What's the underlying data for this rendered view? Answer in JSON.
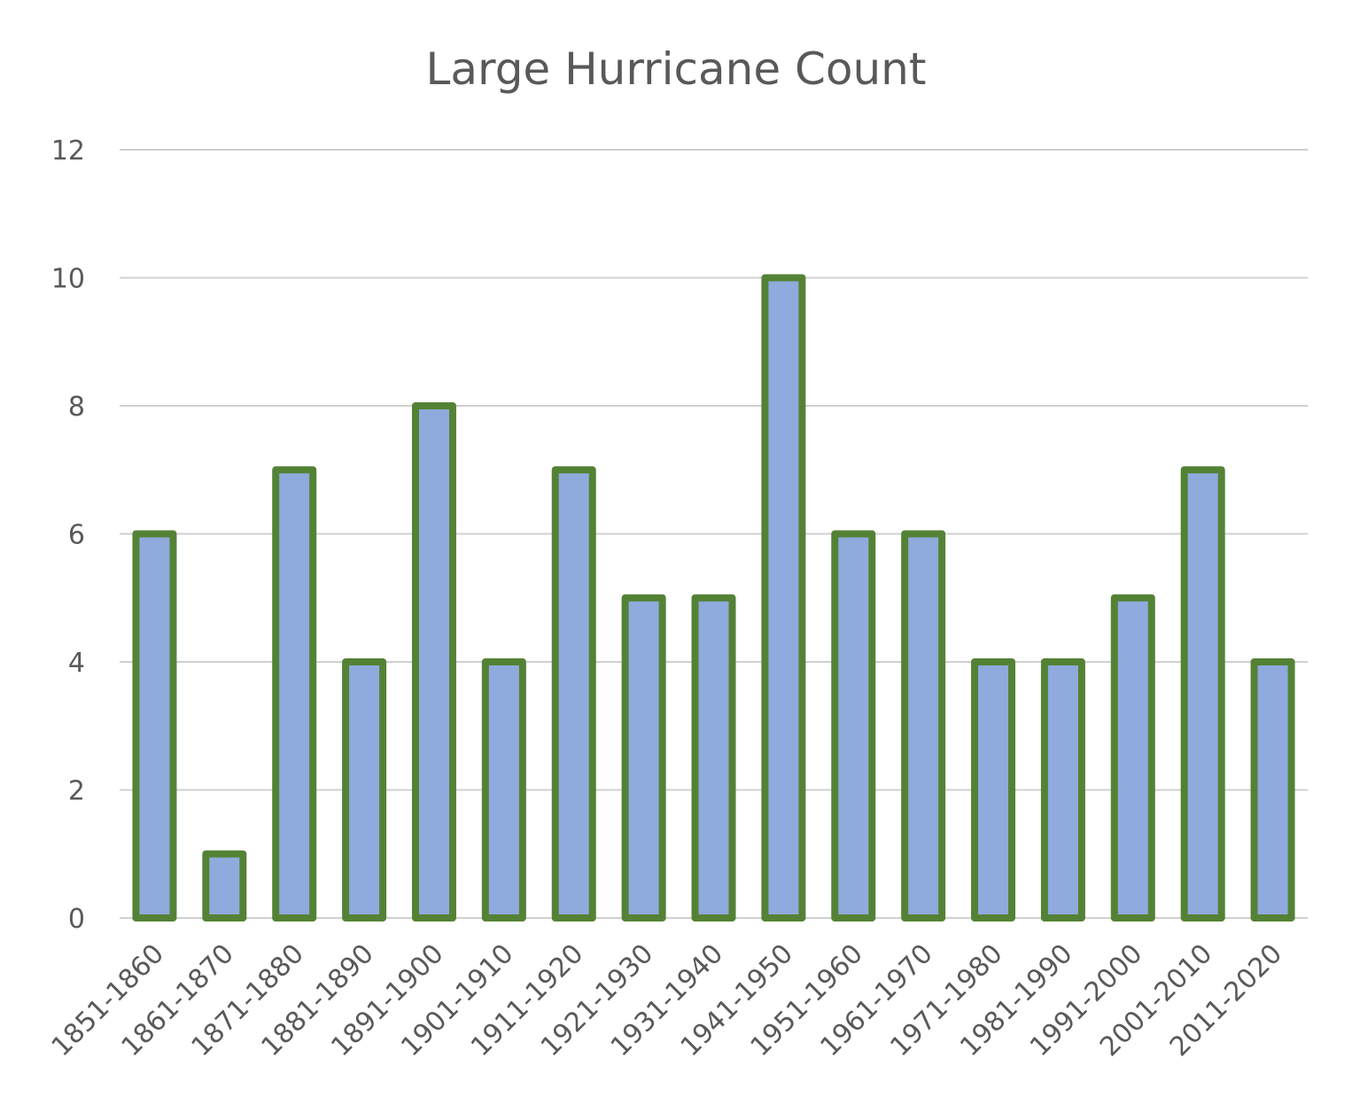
{
  "chart_data": {
    "type": "bar",
    "title": "Large Hurricane Count",
    "xlabel": "",
    "ylabel": "",
    "categories": [
      "1851-1860",
      "1861-1870",
      "1871-1880",
      "1881-1890",
      "1891-1900",
      "1901-1910",
      "1911-1920",
      "1921-1930",
      "1931-1940",
      "1941-1950",
      "1951-1960",
      "1961-1970",
      "1971-1980",
      "1981-1990",
      "1991-2000",
      "2001-2010",
      "2011-2020"
    ],
    "values": [
      6,
      1,
      7,
      4,
      8,
      4,
      7,
      5,
      5,
      10,
      6,
      6,
      4,
      4,
      5,
      7,
      4
    ],
    "ylim": [
      0,
      12
    ],
    "yticks": [
      0,
      2,
      4,
      6,
      8,
      10,
      12
    ],
    "grid": true,
    "legend": "none",
    "colors": {
      "bar_fill": "#8faadc",
      "bar_outline": "#548235",
      "gridline": "#d0d0d0",
      "text": "#595959"
    }
  }
}
